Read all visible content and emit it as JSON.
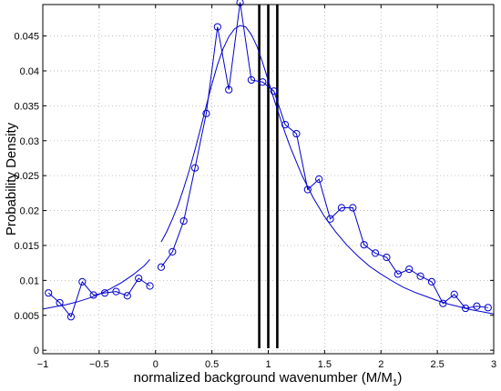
{
  "chart_data": {
    "type": "line",
    "title": "",
    "xlabel": "normalized background wavenumber (M/M",
    "xlabel_sub": "1",
    "xlabel_close": ")",
    "ylabel": "Probability Density",
    "xlim": [
      -1,
      3
    ],
    "ylim": [
      -0.0005,
      0.0495
    ],
    "grid": true,
    "grid_style": "dotted",
    "x_ticks": [
      -1,
      -0.5,
      0,
      0.5,
      1,
      1.5,
      2,
      2.5,
      3
    ],
    "x_tick_labels": [
      "−1",
      "−0.5",
      "0",
      "0.5",
      "1",
      "1.5",
      "2",
      "2.5",
      "3"
    ],
    "y_ticks": [
      0,
      0.005,
      0.01,
      0.015,
      0.02,
      0.025,
      0.03,
      0.035,
      0.04,
      0.045
    ],
    "y_tick_labels": [
      "0",
      "0.005",
      "0.01",
      "0.015",
      "0.02",
      "0.025",
      "0.03",
      "0.035",
      "0.04",
      "0.045"
    ],
    "line_color": "#0000cc",
    "vline_color": "#000000",
    "series": [
      {
        "kind": "markers",
        "x": [
          -0.95,
          -0.85,
          -0.75,
          -0.65,
          -0.55,
          -0.45,
          -0.35,
          -0.25,
          -0.15,
          -0.05
        ],
        "y": [
          0.0082,
          0.0068,
          0.0048,
          0.0098,
          0.0079,
          0.0082,
          0.0084,
          0.0078,
          0.0103,
          0.0092
        ]
      },
      {
        "kind": "markers",
        "x": [
          0.05,
          0.15,
          0.25,
          0.35,
          0.45,
          0.55,
          0.65,
          0.75,
          0.85,
          0.95,
          1.05,
          1.15,
          1.25,
          1.35,
          1.45,
          1.55,
          1.65,
          1.75,
          1.85,
          1.95,
          2.05,
          2.15,
          2.25,
          2.35,
          2.45,
          2.55,
          2.65,
          2.75,
          2.85,
          2.95
        ],
        "y": [
          0.0119,
          0.0141,
          0.0185,
          0.0261,
          0.0339,
          0.0463,
          0.0373,
          0.0498,
          0.0387,
          0.0384,
          0.0371,
          0.0323,
          0.031,
          0.023,
          0.0245,
          0.0188,
          0.0204,
          0.0204,
          0.0151,
          0.0139,
          0.0133,
          0.0109,
          0.0116,
          0.0106,
          0.0098,
          0.0067,
          0.008,
          0.006,
          0.0063,
          0.0061
        ]
      },
      {
        "kind": "line",
        "x": [
          -1.0,
          -0.9,
          -0.8,
          -0.7,
          -0.6,
          -0.5,
          -0.4,
          -0.3,
          -0.2,
          -0.1,
          -0.05
        ],
        "y": [
          0.0059,
          0.0062,
          0.0065,
          0.0069,
          0.0074,
          0.008,
          0.0088,
          0.0097,
          0.0108,
          0.0121,
          0.013
        ]
      },
      {
        "kind": "line",
        "x": [
          0.05,
          0.1,
          0.15,
          0.2,
          0.25,
          0.3,
          0.35,
          0.4,
          0.45,
          0.5,
          0.55,
          0.6,
          0.65,
          0.7,
          0.75,
          0.8,
          0.85,
          0.9,
          0.95,
          1.0,
          1.05,
          1.1,
          1.15,
          1.2,
          1.3,
          1.4,
          1.5,
          1.6,
          1.7,
          1.8,
          1.9,
          2.0,
          2.1,
          2.2,
          2.3,
          2.4,
          2.5,
          2.6,
          2.7,
          2.8,
          2.9,
          3.0
        ],
        "y": [
          0.0155,
          0.017,
          0.0188,
          0.0208,
          0.0232,
          0.0258,
          0.0287,
          0.0318,
          0.035,
          0.0381,
          0.0409,
          0.0432,
          0.0449,
          0.046,
          0.0465,
          0.0463,
          0.0452,
          0.0435,
          0.0412,
          0.0386,
          0.036,
          0.0335,
          0.0311,
          0.0289,
          0.025,
          0.0218,
          0.0191,
          0.0169,
          0.015,
          0.0134,
          0.012,
          0.0109,
          0.0099,
          0.009,
          0.0083,
          0.0077,
          0.0071,
          0.0066,
          0.0062,
          0.0058,
          0.0055,
          0.0052
        ]
      }
    ],
    "vertical_lines": [
      0.92,
      1.0,
      1.08
    ]
  }
}
